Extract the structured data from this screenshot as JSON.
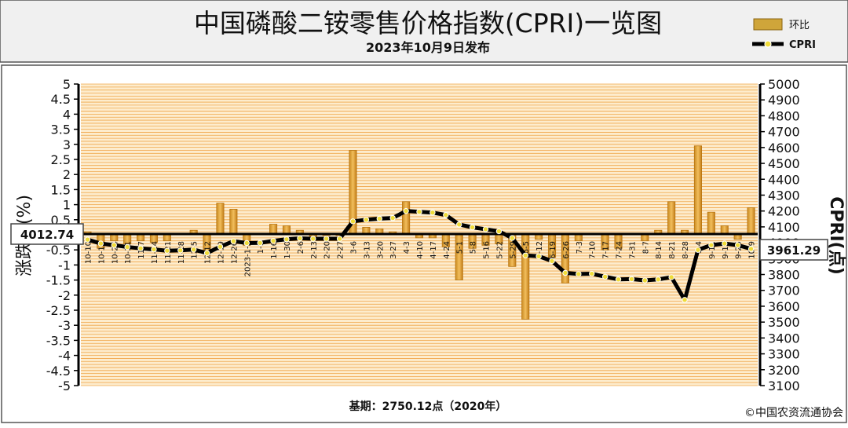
{
  "header": {
    "title": "中国磷酸二铵零售价格指数(CPRI)一览图",
    "subtitle": "2023年10月9日发布"
  },
  "footer": {
    "base": "基期：2750.12点（2020年）",
    "copyright": "©中国农资流通协会"
  },
  "colors": {
    "bar": "#e8a63a",
    "bar_edge": "#b97612",
    "line": "#000000",
    "point": "#f0dc3a",
    "plot_bg": "#fdeccd",
    "grid": "#f0a64a",
    "legend_bar": "#cfa53a"
  },
  "chart_data": {
    "type": "bar",
    "legend": {
      "position": "top-right",
      "bar_label": "环比",
      "line_label": "CPRI"
    },
    "left_axis": {
      "label": "涨跌幅(%)",
      "min": -5,
      "max": 5,
      "step": 0.5
    },
    "right_axis": {
      "label": "CPRI(点)",
      "min": 3100,
      "max": 5000,
      "step": 100
    },
    "categories": [
      "10-10",
      "10-17",
      "10-24",
      "10-31",
      "11-7",
      "11-14",
      "11-21",
      "11-28",
      "12-5",
      "12-12",
      "12-19",
      "12-26",
      "2023-1-2",
      "1-9",
      "1-16",
      "1-30",
      "2-6",
      "2-13",
      "2-20",
      "2-27",
      "3-6",
      "3-13",
      "3-20",
      "3-27",
      "4-3",
      "4-10",
      "4-17",
      "4-24",
      "5-1",
      "5-8",
      "5-16",
      "5-22",
      "5-29",
      "6-5",
      "6-12",
      "6-19",
      "6-26",
      "7-3",
      "7-10",
      "7-17",
      "7-24",
      "7-31",
      "8-7",
      "8-14",
      "8-21",
      "8-28",
      "9-4",
      "9-11",
      "9-18",
      "9-25",
      "10-9"
    ],
    "series": [
      {
        "name": "环比",
        "axis": "left",
        "values": [
          0.1,
          -0.45,
          -0.2,
          -0.3,
          -0.2,
          -0.25,
          -0.2,
          0.05,
          0.15,
          -0.6,
          1.05,
          0.85,
          -0.35,
          0.05,
          0.35,
          0.3,
          0.15,
          -0.05,
          0,
          0,
          2.8,
          0.25,
          0.2,
          0.1,
          1.1,
          -0.1,
          -0.1,
          -0.4,
          -1.5,
          -0.45,
          -0.35,
          -0.3,
          -1.05,
          -2.8,
          -0.15,
          -0.75,
          -1.6,
          -0.2,
          0.05,
          -0.5,
          -0.45,
          0.05,
          -0.2,
          0.15,
          1.1,
          0.15,
          2.95,
          0.75,
          0.3,
          -0.15,
          0.9
        ]
      },
      {
        "name": "CPRI",
        "axis": "right",
        "values": [
          4020,
          3995,
          3985,
          3973,
          3965,
          3958,
          3950,
          3952,
          3957,
          3935,
          3975,
          4010,
          3998,
          3999,
          4012,
          4022,
          4028,
          4025,
          4025,
          4025,
          4135,
          4145,
          4152,
          4156,
          4200,
          4195,
          4190,
          4175,
          4115,
          4097,
          4085,
          4072,
          4030,
          3920,
          3915,
          3885,
          3810,
          3803,
          3805,
          3786,
          3769,
          3771,
          3763,
          3769,
          3783,
          3640,
          3955,
          3985,
          3995,
          3985,
          3961.29
        ]
      }
    ],
    "callouts": {
      "left": "4012.74",
      "right": "3961.29"
    }
  }
}
